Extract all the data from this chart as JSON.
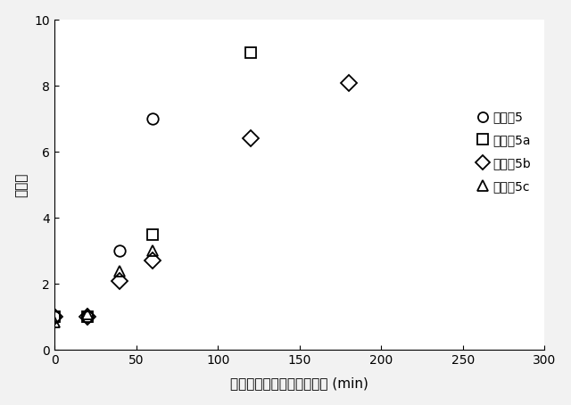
{
  "series": [
    {
      "label": "○実施佢5",
      "marker": "o",
      "markersize": 9,
      "x": [
        0,
        20,
        40,
        60
      ],
      "y": [
        1.0,
        1.0,
        3.0,
        7.0
      ]
    },
    {
      "label": "□実施佢5a",
      "marker": "s",
      "markersize": 9,
      "x": [
        0,
        20,
        60,
        120
      ],
      "y": [
        1.0,
        1.0,
        3.5,
        9.0
      ]
    },
    {
      "label": "◇実施佢5b",
      "marker": "D",
      "markersize": 9,
      "x": [
        0,
        20,
        40,
        60,
        120,
        180
      ],
      "y": [
        1.0,
        1.0,
        2.1,
        2.7,
        6.4,
        8.1
      ]
    },
    {
      "label": "△実施佢5c",
      "marker": "^",
      "markersize": 9,
      "x": [
        0,
        20,
        40,
        60
      ],
      "y": [
        0.85,
        1.1,
        2.4,
        3.0
      ]
    }
  ],
  "legend_labels": [
    "○実施佢5",
    "□実施佢5a",
    "◇実施佢5b",
    "△実施佢5c"
  ],
  "legend_text": [
    "実施佢5",
    "実施佢5a",
    "実施佢5b",
    "実施佢5c"
  ],
  "xlabel": "シャーレ展開後の経過時間 (min)",
  "ylabel": "増粘率",
  "xlim": [
    0,
    300
  ],
  "ylim": [
    0,
    10
  ],
  "xticks": [
    0,
    50,
    100,
    150,
    200,
    250,
    300
  ],
  "yticks": [
    0,
    2,
    4,
    6,
    8,
    10
  ],
  "background_color": "#ffffff",
  "markers": [
    "o",
    "s",
    "D",
    "^"
  ],
  "markeredgewidth": 1.3,
  "markersize": 9
}
